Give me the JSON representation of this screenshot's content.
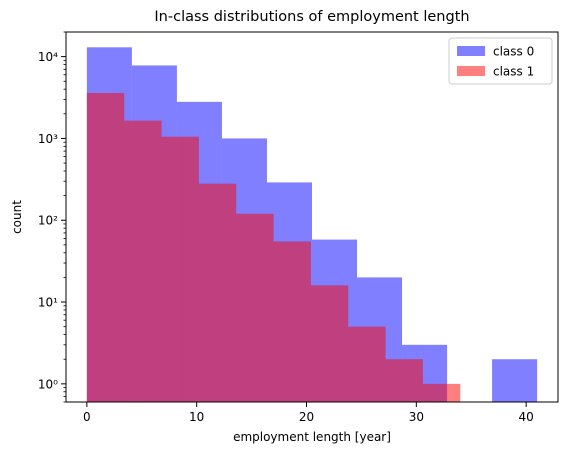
{
  "chart_data": {
    "type": "bar",
    "title": "In-class distributions of employment length",
    "xlabel": "employment length [year]",
    "ylabel": "count",
    "yscale": "log",
    "xlim": [
      -1.9,
      42.9
    ],
    "ylim": [
      0.6,
      20000
    ],
    "xticks": [
      0,
      10,
      20,
      30,
      40
    ],
    "yticks": [
      {
        "value": 1,
        "label": "10⁰"
      },
      {
        "value": 10,
        "label": "10¹"
      },
      {
        "value": 100,
        "label": "10²"
      },
      {
        "value": 1000,
        "label": "10³"
      },
      {
        "value": 10000,
        "label": "10⁴"
      }
    ],
    "legend_position": "top-right",
    "grid": false,
    "series": [
      {
        "name": "class 0",
        "color": "#0000ff",
        "alpha": 0.5,
        "bin_edges": [
          0,
          4.1,
          8.2,
          12.3,
          16.4,
          20.5,
          24.6,
          28.7,
          32.8,
          36.9,
          41
        ],
        "counts": [
          13000,
          7800,
          2800,
          1000,
          290,
          58,
          20,
          3,
          0,
          2
        ]
      },
      {
        "name": "class 1",
        "color": "#ff0000",
        "alpha": 0.5,
        "bin_edges": [
          0,
          3.4,
          6.8,
          10.2,
          13.6,
          17.0,
          20.4,
          23.8,
          27.2,
          30.6,
          34
        ],
        "counts": [
          3600,
          1650,
          1050,
          280,
          120,
          55,
          16,
          5,
          2,
          1
        ]
      }
    ]
  }
}
